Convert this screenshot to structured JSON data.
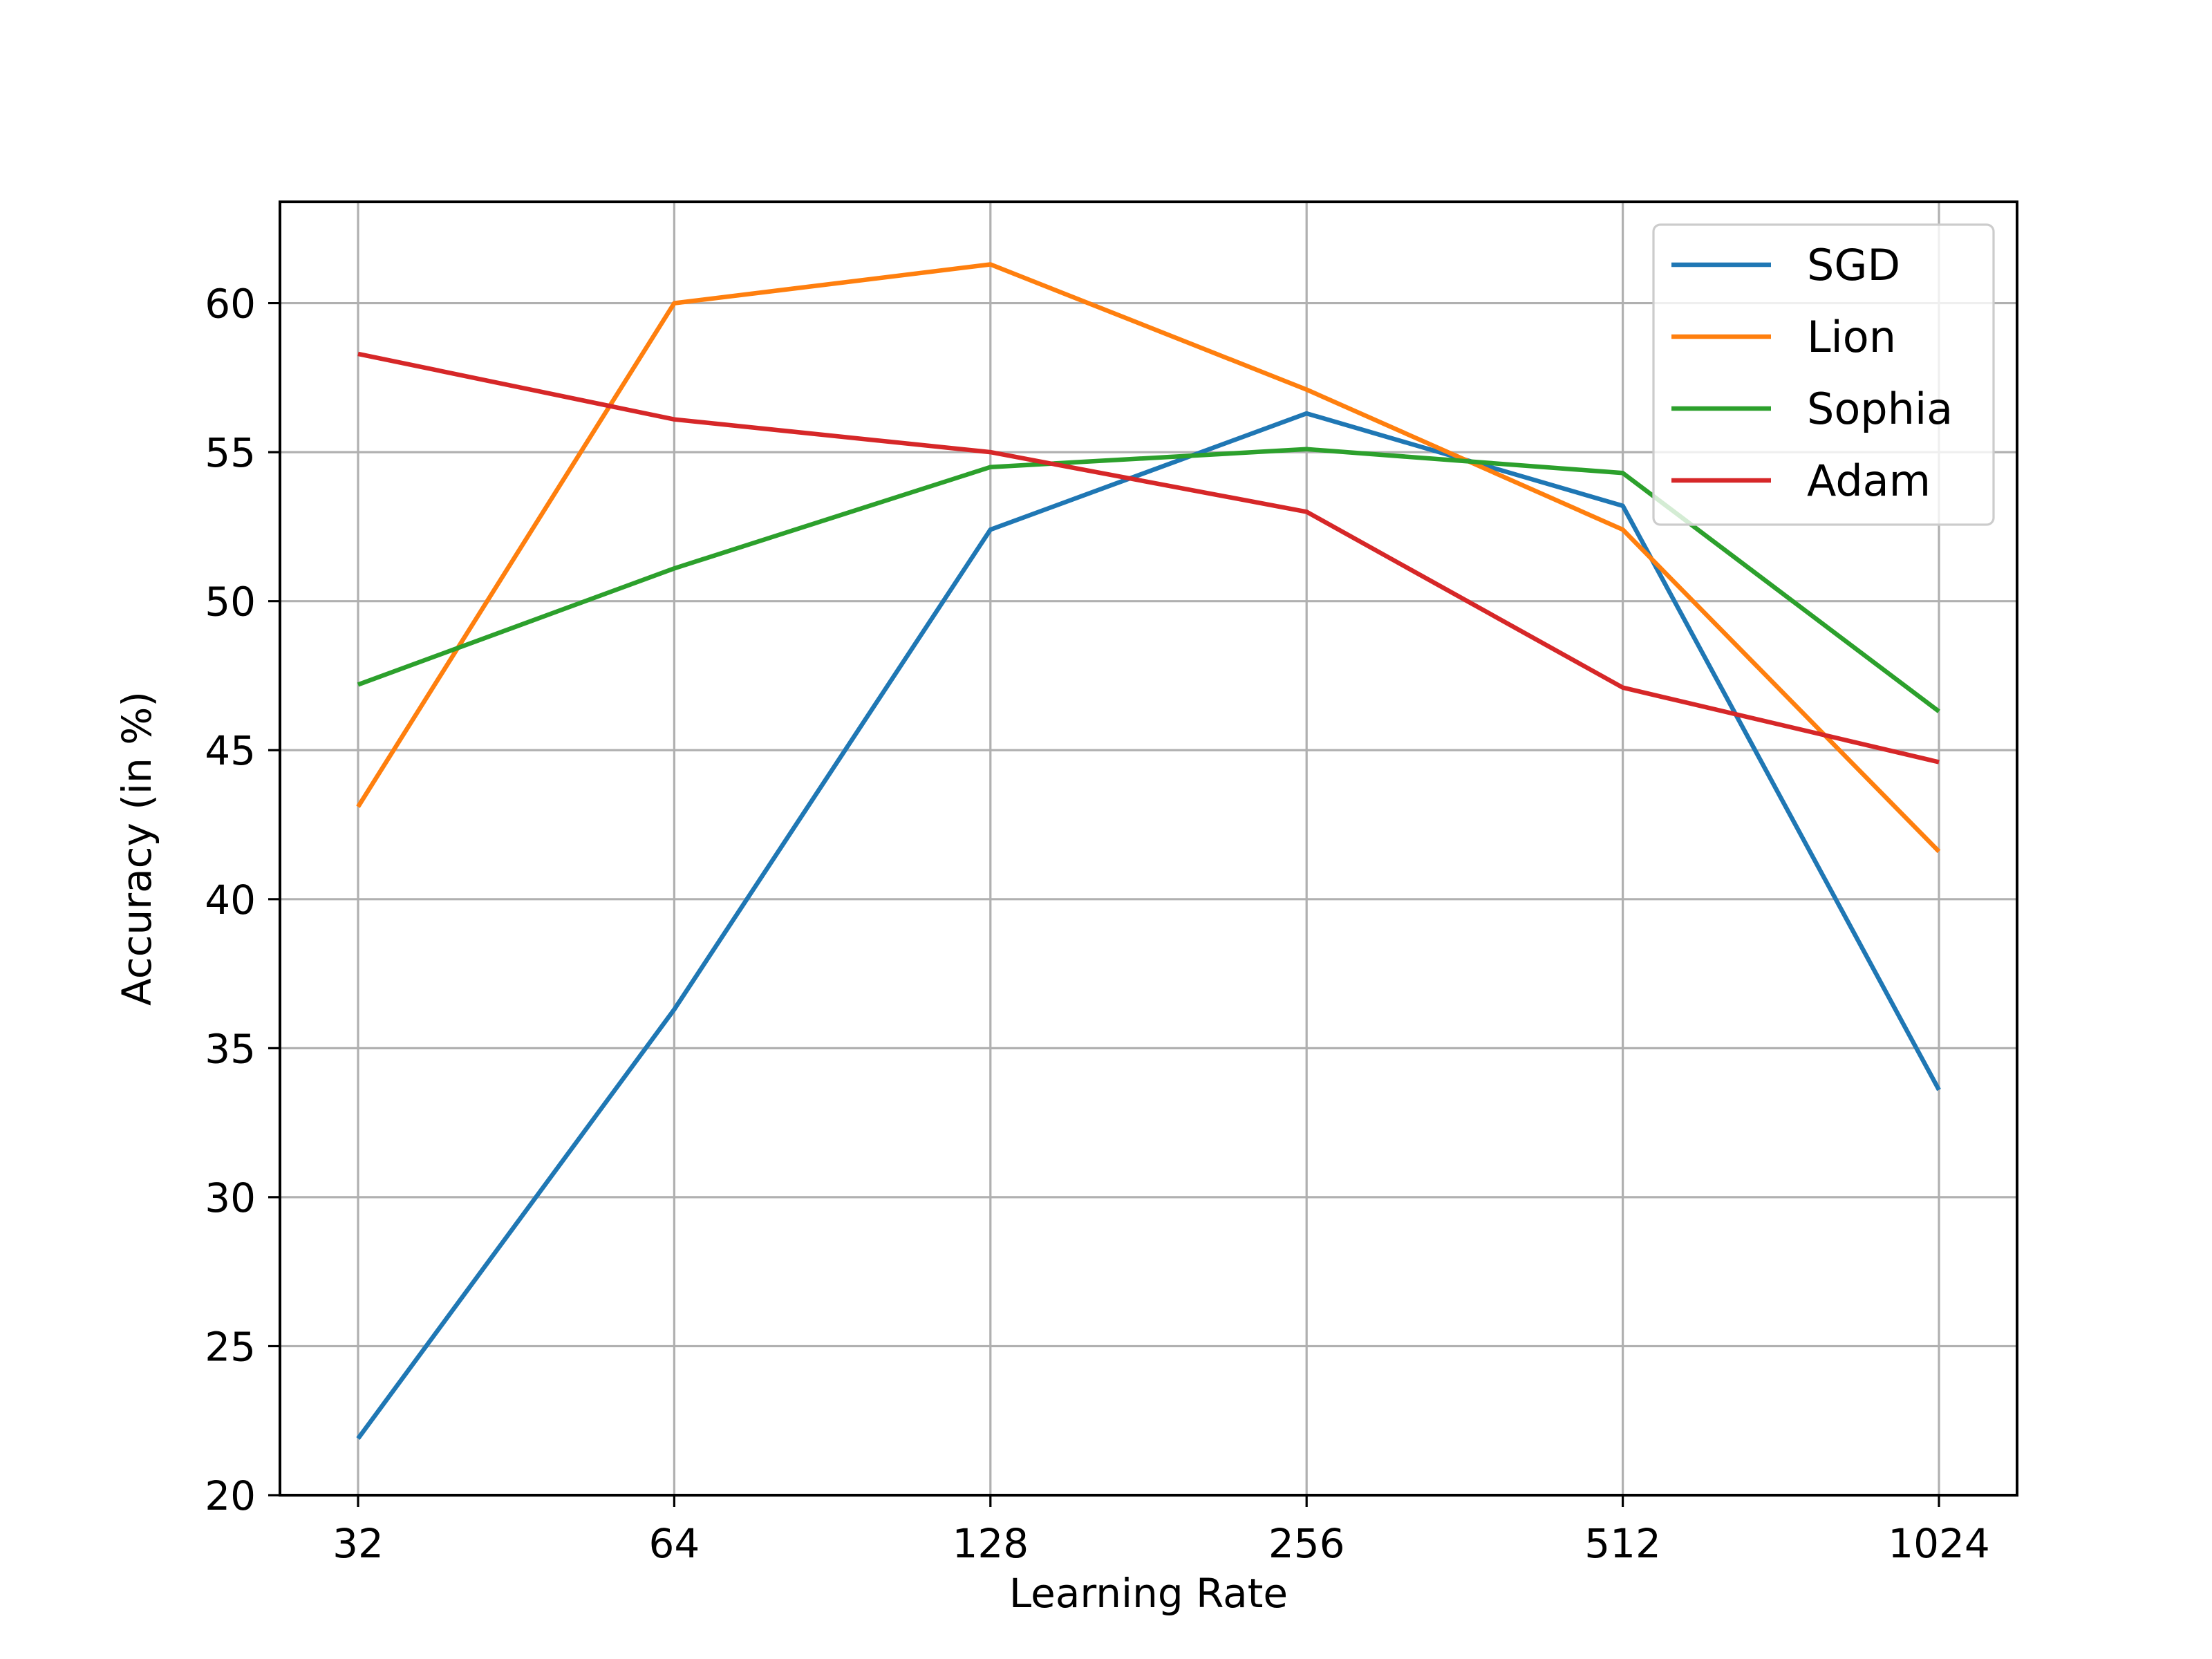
{
  "chart_data": {
    "type": "line",
    "xlabel": "Learning Rate",
    "ylabel": "Accuracy (in %)",
    "x_scale": "log2",
    "categories": [
      "32",
      "64",
      "128",
      "256",
      "512",
      "1024"
    ],
    "ylim": [
      20,
      63.4
    ],
    "yticks": [
      20,
      25,
      30,
      35,
      40,
      45,
      50,
      55,
      60
    ],
    "grid": true,
    "legend_position": "top-right",
    "series": [
      {
        "name": "SGD",
        "color": "#1f77b4",
        "values": [
          21.9,
          36.3,
          52.4,
          56.3,
          53.2,
          33.6
        ]
      },
      {
        "name": "Lion",
        "color": "#ff7f0e",
        "values": [
          43.1,
          60.0,
          61.3,
          57.1,
          52.4,
          41.6
        ]
      },
      {
        "name": "Sophia",
        "color": "#2ca02c",
        "values": [
          47.2,
          51.1,
          54.5,
          55.1,
          54.3,
          46.3
        ]
      },
      {
        "name": "Adam",
        "color": "#d62728",
        "values": [
          58.3,
          56.1,
          55.0,
          53.0,
          47.1,
          44.6
        ]
      }
    ]
  }
}
